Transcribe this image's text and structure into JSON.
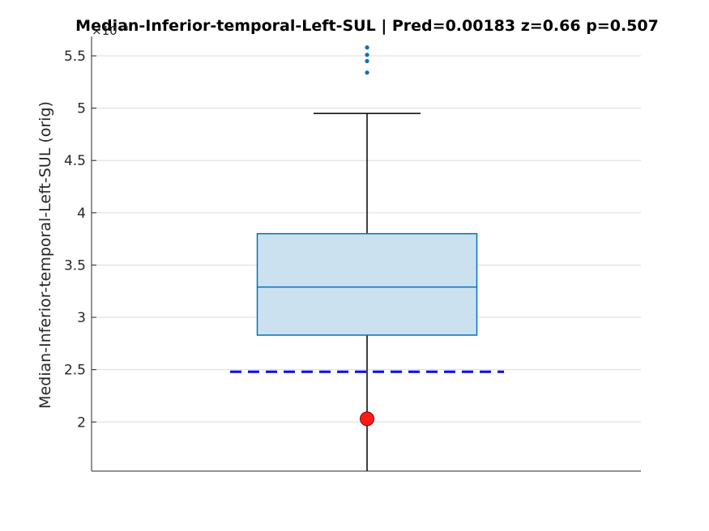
{
  "chart_data": {
    "type": "box",
    "title": "Median-Inferior-temporal-Left-SUL  |  Pred=0.00183  z=0.66  p=0.507",
    "ylabel": "Median-Inferior-temporal-Left-SUL (orig)",
    "xlabel": "",
    "y_exponent_label": "×10⁻³",
    "ylim": [
      1.53,
      5.5
    ],
    "yticks": [
      2,
      2.5,
      3,
      3.5,
      4,
      4.5,
      5,
      5.5
    ],
    "ytick_labels": [
      "2",
      "2.5",
      "3",
      "3.5",
      "4",
      "4.5",
      "5",
      "5.5"
    ],
    "grid": true,
    "box": {
      "q1": 2.83,
      "median": 3.29,
      "q3": 3.8,
      "whisker_low": 1.53,
      "whisker_high": 4.95,
      "outliers": [
        5.34,
        5.45,
        5.51,
        5.58
      ]
    },
    "reference_line": 2.48,
    "subject_value": 2.03,
    "colors": {
      "box_fill": "#cce1f0",
      "box_edge": "#0072bd",
      "median": "#0072bd",
      "whisker": "#000000",
      "outlier": "#0072bd",
      "reference": "#0000ff",
      "subject": "#ff1a1a",
      "grid": "#dcdcdc",
      "axis": "#262626"
    }
  }
}
